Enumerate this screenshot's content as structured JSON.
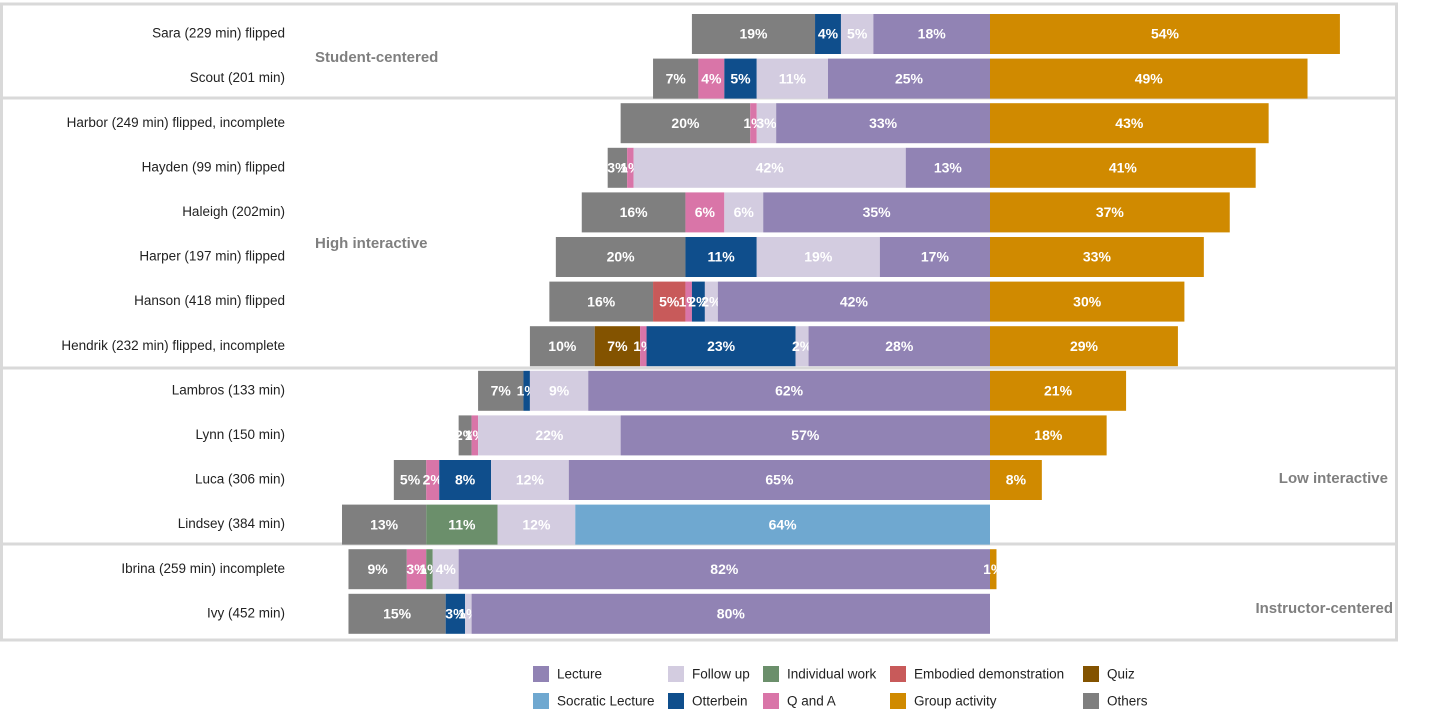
{
  "chart_data": {
    "type": "diverging-bar",
    "categories": [
      "Sara (229 min) flipped",
      "Scout (201 min)",
      "Harbor (249 min) flipped, incomplete",
      "Hayden (99 min) flipped",
      "Haleigh (202min)",
      "Harper (197 min) flipped",
      "Hanson (418 min) flipped",
      "Hendrik (232 min) flipped, incomplete",
      "Lambros (133 min)",
      "Lynn (150 min)",
      "Luca (306 min)",
      "Lindsey (384 min)",
      "Ibrina (259 min) incomplete",
      "Ivy (452 min)"
    ],
    "groups": [
      "Student-centered",
      "High interactive",
      "Low interactive",
      "Instructor-centered"
    ],
    "series": [
      {
        "name": "Lecture",
        "color": "#9183b4",
        "values": [
          18,
          25,
          33,
          13,
          35,
          17,
          42,
          28,
          62,
          57,
          65,
          null,
          82,
          80
        ],
        "value_labels": [
          "18%",
          "25%",
          "33%",
          "13%",
          "35%",
          "17%",
          "42%",
          "28%",
          "62%",
          "57%",
          "65%",
          null,
          "82%",
          "80%"
        ]
      },
      {
        "name": "Follow up",
        "color": "#d3cce0",
        "values": [
          5,
          11,
          3,
          42,
          6,
          19,
          2,
          2,
          9,
          22,
          12,
          12,
          4,
          1
        ],
        "value_labels": [
          "5%",
          "11%",
          "3%",
          "42%",
          "6%",
          "19%",
          "2%",
          "2%",
          "9%",
          "22%",
          "12%",
          "12%",
          "4%",
          "1%"
        ]
      },
      {
        "name": "Individual work",
        "color": "#6b8f6b",
        "values": [
          null,
          null,
          null,
          null,
          null,
          null,
          null,
          null,
          null,
          null,
          null,
          11,
          1,
          null
        ],
        "value_labels": [
          null,
          null,
          null,
          null,
          null,
          null,
          null,
          null,
          null,
          null,
          null,
          "11%",
          "1%",
          null
        ]
      },
      {
        "name": "Embodied demonstration",
        "color": "#c85a5a",
        "values": [
          null,
          null,
          null,
          null,
          null,
          null,
          5,
          null,
          null,
          null,
          null,
          null,
          null,
          null
        ],
        "value_labels": [
          null,
          null,
          null,
          null,
          null,
          null,
          "5%",
          null,
          null,
          null,
          null,
          null,
          null,
          null
        ]
      },
      {
        "name": "Quiz",
        "color": "#835300",
        "values": [
          null,
          null,
          null,
          null,
          null,
          null,
          null,
          7,
          null,
          null,
          null,
          null,
          null,
          null
        ],
        "value_labels": [
          null,
          null,
          null,
          null,
          null,
          null,
          null,
          "7%",
          null,
          null,
          null,
          null,
          null,
          null
        ]
      },
      {
        "name": "Socratic Lecture",
        "color": "#6fa8d0",
        "values": [
          null,
          null,
          null,
          null,
          null,
          null,
          null,
          null,
          null,
          null,
          null,
          64,
          null,
          null
        ],
        "value_labels": [
          null,
          null,
          null,
          null,
          null,
          null,
          null,
          null,
          null,
          null,
          null,
          "64%",
          null,
          null
        ]
      },
      {
        "name": "Otterbein",
        "color": "#0f4e8c",
        "values": [
          4,
          5,
          null,
          null,
          null,
          11,
          2,
          23,
          1,
          null,
          8,
          null,
          null,
          3
        ],
        "value_labels": [
          "4%",
          "5%",
          null,
          null,
          null,
          "11%",
          "2%",
          "23%",
          "1%",
          null,
          "8%",
          null,
          null,
          "3%"
        ]
      },
      {
        "name": "Q and A",
        "color": "#d975a8",
        "values": [
          null,
          4,
          1,
          1,
          6,
          null,
          1,
          1,
          null,
          1,
          2,
          null,
          3,
          null
        ],
        "value_labels": [
          null,
          "4%",
          "1%",
          "1%",
          "6%",
          null,
          "1%",
          "1%",
          null,
          "1%",
          "2%",
          null,
          "3%",
          null
        ]
      },
      {
        "name": "Group activity",
        "color": "#d08a00",
        "values": [
          54,
          49,
          43,
          41,
          37,
          33,
          30,
          29,
          21,
          18,
          8,
          null,
          1,
          null
        ],
        "value_labels": [
          "54%",
          "49%",
          "43%",
          "41%",
          "37%",
          "33%",
          "30%",
          "29%",
          "21%",
          "18%",
          "8%",
          null,
          "1%",
          null
        ]
      },
      {
        "name": "Others",
        "color": "#7f7f7f",
        "values": [
          19,
          7,
          20,
          3,
          16,
          20,
          16,
          10,
          7,
          2,
          5,
          13,
          9,
          15
        ],
        "value_labels": [
          "19%",
          "7%",
          "20%",
          "3%",
          "16%",
          "20%",
          "16%",
          "10%",
          "7%",
          "2%",
          "5%",
          "13%",
          "9%",
          "15%"
        ]
      }
    ]
  }
}
